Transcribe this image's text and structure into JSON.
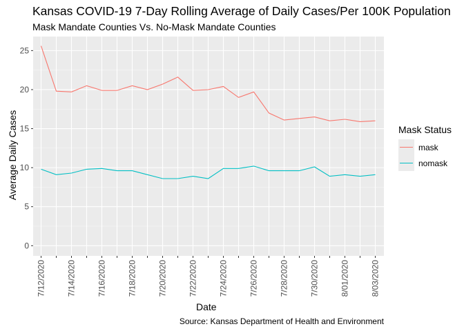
{
  "chart_data": {
    "type": "line",
    "title": "Kansas COVID-19 7-Day Rolling Average of Daily Cases/Per 100K Population",
    "subtitle": "Mask Mandate Counties Vs. No-Mask Mandate Counties",
    "xlabel": "Date",
    "ylabel": "Average Daily Cases",
    "caption": "Source: Kansas Department of Health and Environment",
    "legend_title": "Mask Status",
    "legend_position": "right",
    "grid": true,
    "ylim": [
      -1.3,
      26.8
    ],
    "yticks": [
      0,
      5,
      10,
      15,
      20,
      25
    ],
    "x": [
      "7/12/2020",
      "7/13/2020",
      "7/14/2020",
      "7/15/2020",
      "7/16/2020",
      "7/17/2020",
      "7/18/2020",
      "7/19/2020",
      "7/20/2020",
      "7/21/2020",
      "7/22/2020",
      "7/23/2020",
      "7/24/2020",
      "7/25/2020",
      "7/26/2020",
      "7/27/2020",
      "7/28/2020",
      "7/29/2020",
      "7/30/2020",
      "7/31/2020",
      "8/01/2020",
      "8/02/2020",
      "8/03/2020"
    ],
    "xtick_labels": [
      "7/12/2020",
      "",
      "7/14/2020",
      "",
      "7/16/2020",
      "",
      "7/18/2020",
      "",
      "7/20/2020",
      "",
      "7/22/2020",
      "",
      "7/24/2020",
      "",
      "7/26/2020",
      "",
      "7/28/2020",
      "",
      "7/30/2020",
      "",
      "8/01/2020",
      "",
      "8/03/2020"
    ],
    "series": [
      {
        "name": "mask",
        "color": "#F8766D",
        "values": [
          25.6,
          19.8,
          19.7,
          20.5,
          19.9,
          19.9,
          20.5,
          20.0,
          20.7,
          21.6,
          19.9,
          20.0,
          20.4,
          19.0,
          19.7,
          17.0,
          16.1,
          16.3,
          16.5,
          16.0,
          16.2,
          15.9,
          16.0
        ]
      },
      {
        "name": "nomask",
        "color": "#00BFC4",
        "values": [
          9.8,
          9.1,
          9.3,
          9.8,
          9.9,
          9.6,
          9.6,
          9.1,
          8.6,
          8.6,
          8.9,
          8.6,
          9.9,
          9.9,
          10.2,
          9.6,
          9.6,
          9.6,
          10.1,
          8.9,
          9.1,
          8.9,
          9.1
        ]
      }
    ]
  }
}
